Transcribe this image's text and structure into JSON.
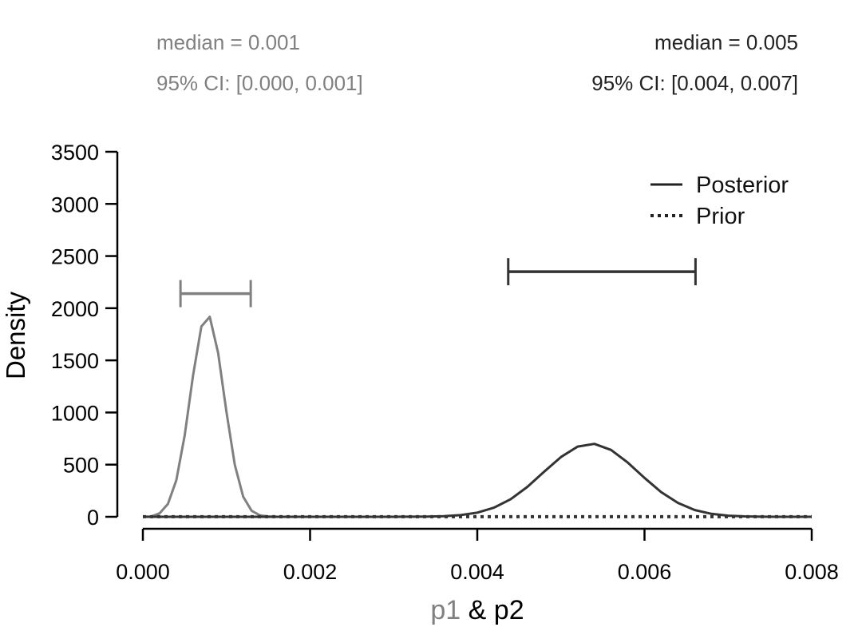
{
  "chart_data": {
    "type": "line",
    "xlabel_parts": [
      "p1",
      " & p2"
    ],
    "ylabel": "Density",
    "xlim": [
      0,
      0.008
    ],
    "ylim": [
      0,
      3500
    ],
    "x_ticks": [
      "0.000",
      "0.002",
      "0.004",
      "0.006",
      "0.008"
    ],
    "x_tick_values": [
      0,
      0.002,
      0.004,
      0.006,
      0.008
    ],
    "y_ticks": [
      "0",
      "500",
      "1000",
      "1500",
      "2000",
      "2500",
      "3000",
      "3500"
    ],
    "y_tick_values": [
      0,
      500,
      1000,
      1500,
      2000,
      2500,
      3000,
      3500
    ],
    "grid": false,
    "legend": {
      "placement": "top-right",
      "entries": [
        {
          "label": "Posterior",
          "style": "solid"
        },
        {
          "label": "Prior",
          "style": "dotted"
        }
      ]
    },
    "colors": {
      "p1": "#808080",
      "p2": "#333333",
      "text_dark": "#222222"
    },
    "annotations": {
      "p1": {
        "median": "median = 0.001",
        "ci": "95% CI: [0.000, 0.001]"
      },
      "p2": {
        "median": "median = 0.005",
        "ci": "95% CI: [0.004, 0.007]"
      }
    },
    "credible_intervals": [
      {
        "series": "p1",
        "lower": 0.00045,
        "upper": 0.00129,
        "y": 2140
      },
      {
        "series": "p2",
        "lower": 0.00437,
        "upper": 0.00661,
        "y": 2350
      }
    ],
    "series": [
      {
        "id": "p1-posterior",
        "color": "#808080",
        "style": "solid",
        "x": [
          0,
          0.0001,
          0.0002,
          0.0003,
          0.0004,
          0.0005,
          0.0006,
          0.0007,
          0.0008,
          0.0009,
          0.001,
          0.0011,
          0.0012,
          0.0013,
          0.0014,
          0.0015,
          0.0016,
          0.002
        ],
        "y": [
          0,
          2,
          33,
          123,
          351,
          780,
          1352,
          1825,
          1918,
          1571,
          1002,
          498,
          192,
          58,
          14,
          3,
          0,
          0
        ]
      },
      {
        "id": "p2-posterior",
        "color": "#333333",
        "style": "solid",
        "x": [
          0,
          0.003,
          0.0032,
          0.0034,
          0.0036,
          0.0038,
          0.004,
          0.0042,
          0.0044,
          0.0046,
          0.0048,
          0.005,
          0.0052,
          0.0054,
          0.0056,
          0.0058,
          0.006,
          0.0062,
          0.0064,
          0.0066,
          0.0068,
          0.007,
          0.0072,
          0.0074,
          0.0076,
          0.008
        ],
        "y": [
          0,
          0,
          0.5,
          2,
          6,
          16,
          40,
          87,
          169,
          287,
          433,
          573,
          673,
          699,
          641,
          520,
          373,
          237,
          133,
          65,
          28,
          11,
          4,
          1,
          0,
          0
        ]
      },
      {
        "id": "prior",
        "color": "#333333",
        "style": "dotted",
        "x": [
          0,
          0.008
        ],
        "y": [
          1,
          1
        ]
      }
    ]
  }
}
